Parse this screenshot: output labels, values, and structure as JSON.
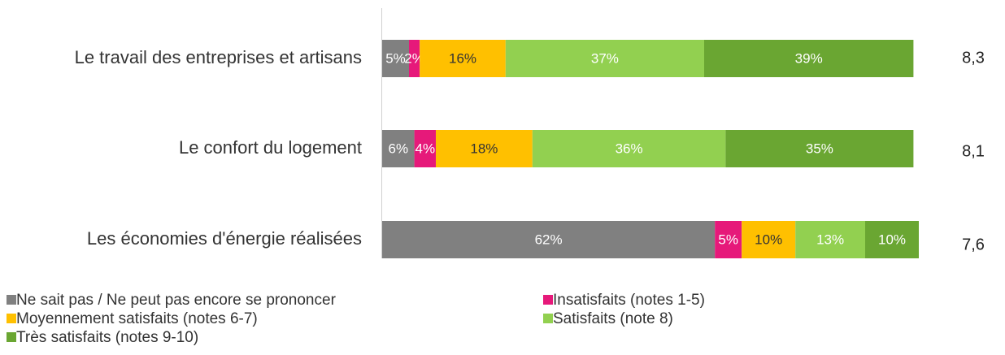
{
  "chart_data": {
    "type": "stacked-bar-horizontal",
    "categories": [
      "Le travail des entreprises et artisans",
      "Le confort du logement",
      "Les économies d'énergie réalisées"
    ],
    "series": [
      {
        "name": "Ne sait pas / Ne peut pas encore se prononcer",
        "color": "#808080",
        "label_color": "#ffffff",
        "values": [
          5,
          6,
          62
        ],
        "value_labels": [
          "5%",
          "6%",
          "62%"
        ]
      },
      {
        "name": "Insatisfaits (notes 1-5)",
        "color": "#e6197a",
        "label_color": "#ffffff",
        "values": [
          2,
          4,
          5
        ],
        "value_labels": [
          "2%",
          "4%",
          "5%"
        ]
      },
      {
        "name": "Moyennement satisfaits (notes 6-7)",
        "color": "#ffc000",
        "label_color": "#333333",
        "values": [
          16,
          18,
          10
        ],
        "value_labels": [
          "16%",
          "18%",
          "10%"
        ]
      },
      {
        "name": "Satisfaits (note 8)",
        "color": "#92d050",
        "label_color": "#ffffff",
        "values": [
          37,
          36,
          13
        ],
        "value_labels": [
          "37%",
          "36%",
          "13%"
        ]
      },
      {
        "name": "Très satisfaits (notes 9-10)",
        "color": "#6aa632",
        "label_color": "#ffffff",
        "values": [
          39,
          35,
          10
        ],
        "value_labels": [
          "39%",
          "35%",
          "10%"
        ]
      }
    ],
    "scores": [
      8.3,
      8.1,
      7.6
    ],
    "score_labels": [
      "8,3",
      "8,1",
      "7,6"
    ],
    "xlim": [
      0,
      100
    ]
  }
}
